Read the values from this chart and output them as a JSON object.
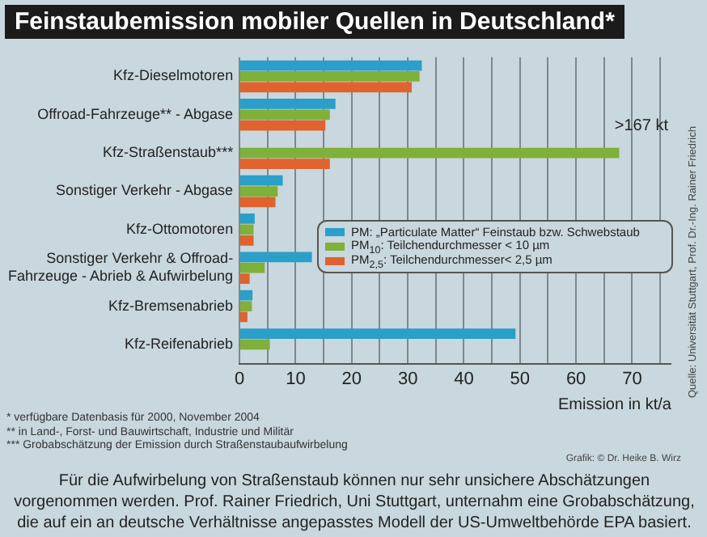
{
  "chart_data": {
    "type": "bar",
    "orientation": "horizontal",
    "title": "Feinstaubemission mobiler Quellen in Deutschland*",
    "xlabel": "Emission in kt/a",
    "categories": [
      "Kfz-Dieselmotoren",
      "Offroad-Fahrzeuge** - Abgase",
      "Kfz-Straßenstaub***",
      "Sonstiger Verkehr - Abgase",
      "Kfz-Ottomotoren",
      "Sonstiger Verkehr & Offroad-Fahrzeuge - Abrieb & Aufwirbelung",
      "Kfz-Bremsenabrieb",
      "Kfz-Reifenabrieb"
    ],
    "series": [
      {
        "name": "PM: „Particulate Matter“ Feinstaub bzw. Schwebstaub",
        "color": "#2a9fc9",
        "values": [
          32.5,
          17.1,
          null,
          7.7,
          2.7,
          12.9,
          2.3,
          49.2
        ],
        "value_labels": [
          null,
          null,
          ">167 kt",
          null,
          null,
          null,
          null,
          null
        ]
      },
      {
        "name": "PM$_{10}$: Teilchendurchmesser < 10 µm",
        "color": "#7fb03a",
        "values": [
          32.1,
          16.1,
          67.7,
          6.8,
          2.5,
          4.5,
          2.2,
          5.4
        ]
      },
      {
        "name": "PM$_{2,5}$: Teilchendurchmesser< 2,5 µm",
        "color": "#e0622e",
        "values": [
          30.7,
          15.3,
          16.1,
          6.4,
          2.5,
          1.8,
          1.4,
          null
        ]
      }
    ],
    "xlim": [
      0,
      77
    ],
    "xticks": [
      0,
      {
        "value": 5,
        "label": null
      },
      10,
      {
        "value": 15,
        "label": null
      },
      20,
      {
        "value": 25,
        "label": null
      },
      30,
      {
        "value": 35,
        "label": null
      },
      40,
      {
        "value": 45,
        "label": null
      },
      50,
      {
        "value": 55,
        "label": null
      },
      60,
      {
        "value": 65,
        "label": null
      },
      70,
      {
        "value": 75,
        "label": null
      }
    ],
    "grid": "x",
    "legend": "right",
    "annotations": [
      "* verfügbare Datenbasis für 2000, November 2004",
      "** in Land-, Forst- und Bauwirtschaft, Industrie und Militär",
      "*** Grobabschätzung der Emission durch Straßenstaubaufwirbelung",
      "Grafik: © Dr. Heike B. Wirz",
      "Quelle: Universität Stuttgart, Prof. Dr.-Ing. Rainer Friedrich",
      "Für die Aufwirbelung von Straßenstaub können nur sehr unsichere Abschätzungen vorgenommen werden. Prof. Rainer Friedrich, Uni Stuttgart, unternahm eine Grobabschätzung, die auf ein an deutsche Verhältnisse angepasstes Modell der US-Umweltbehörde EPA basiert."
    ]
  }
}
